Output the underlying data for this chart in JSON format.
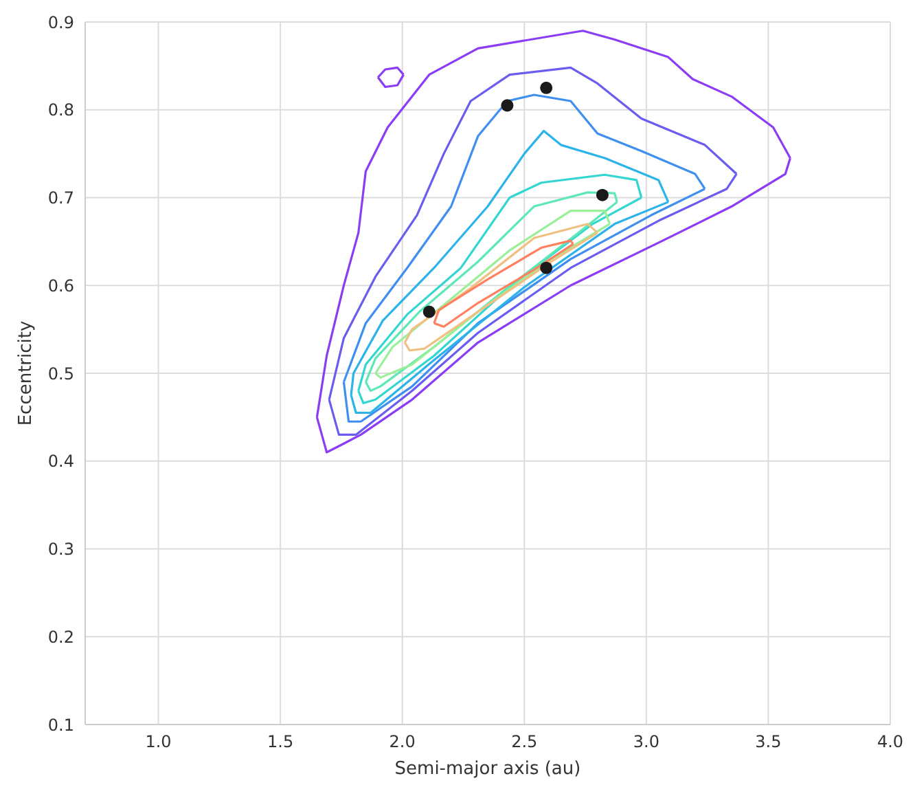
{
  "chart_data": {
    "type": "line",
    "xlabel": "Semi-major axis (au)",
    "ylabel": "Eccentricity",
    "xlim": [
      0.7,
      4.0
    ],
    "ylim": [
      0.1,
      0.9
    ],
    "xticks": [
      {
        "value": 1,
        "label": "1.0"
      },
      1.5,
      {
        "value": 2,
        "label": "2.0"
      },
      2.5,
      {
        "value": 3,
        "label": "3.0"
      },
      3.5,
      {
        "value": 4,
        "label": "4.0"
      }
    ],
    "yticks": [
      0.1,
      0.2,
      0.3,
      0.4,
      0.5,
      0.6,
      0.7,
      0.8,
      0.9
    ],
    "grid": true,
    "line_style": "solid",
    "series": [
      {
        "color": "#8b3cf5",
        "x": [
          1.65,
          1.69,
          1.76,
          1.82,
          1.85,
          1.94,
          2.11,
          2.31,
          2.74,
          2.87,
          3.09,
          3.19,
          3.35,
          3.52,
          3.59,
          null,
          1.65,
          1.69,
          1.74,
          1.83,
          2.04,
          2.31,
          2.69,
          3.06,
          3.35,
          3.57,
          3.59
        ],
        "values": [
          0.45,
          0.52,
          0.6,
          0.66,
          0.73,
          0.78,
          0.84,
          0.87,
          0.89,
          0.88,
          0.86,
          0.835,
          0.815,
          0.78,
          0.745,
          null,
          0.45,
          0.41,
          0.417,
          0.43,
          0.47,
          0.535,
          0.6,
          0.65,
          0.69,
          0.727,
          0.745
        ]
      },
      {
        "color": "#8b3cf5",
        "x": [
          1.9,
          1.93,
          1.98,
          2.005,
          null,
          1.9,
          1.93,
          1.98,
          2.005
        ],
        "values": [
          0.837,
          0.846,
          0.848,
          0.84,
          null,
          0.837,
          0.826,
          0.828,
          0.84
        ]
      },
      {
        "color": "#6b5cf0",
        "x": [
          1.7,
          1.76,
          1.89,
          2.06,
          2.17,
          2.28,
          2.44,
          2.69,
          2.8,
          2.98,
          3.24,
          3.37,
          null,
          1.7,
          1.74,
          1.81,
          2.04,
          2.31,
          2.69,
          3.06,
          3.33,
          3.37
        ],
        "values": [
          0.47,
          0.54,
          0.61,
          0.68,
          0.75,
          0.81,
          0.84,
          0.848,
          0.83,
          0.79,
          0.76,
          0.727,
          null,
          0.47,
          0.43,
          0.43,
          0.48,
          0.546,
          0.62,
          0.675,
          0.71,
          0.727
        ]
      },
      {
        "color": "#3f8ff0",
        "x": [
          1.76,
          1.85,
          2.02,
          2.2,
          2.31,
          2.43,
          2.54,
          2.69,
          2.8,
          2.98,
          3.2,
          3.24,
          null,
          1.76,
          1.78,
          1.83,
          2.04,
          2.31,
          2.69,
          3.02,
          3.24
        ],
        "values": [
          0.49,
          0.557,
          0.62,
          0.69,
          0.77,
          0.81,
          0.817,
          0.81,
          0.773,
          0.753,
          0.727,
          0.71,
          null,
          0.49,
          0.445,
          0.445,
          0.485,
          0.557,
          0.63,
          0.68,
          0.71
        ]
      },
      {
        "color": "#2cb3ea",
        "x": [
          1.79,
          1.8,
          1.92,
          2.13,
          2.35,
          2.5,
          2.58,
          2.65,
          2.83,
          3.05,
          3.09,
          null,
          1.79,
          1.81,
          1.87,
          2.13,
          2.5,
          2.87,
          3.09
        ],
        "values": [
          0.475,
          0.5,
          0.56,
          0.62,
          0.69,
          0.75,
          0.776,
          0.76,
          0.745,
          0.72,
          0.695,
          null,
          0.475,
          0.455,
          0.455,
          0.515,
          0.598,
          0.67,
          0.695
        ]
      },
      {
        "color": "#33d6d0",
        "x": [
          1.82,
          1.85,
          2.02,
          2.24,
          2.44,
          2.57,
          2.83,
          2.96,
          2.98,
          null,
          1.82,
          1.84,
          1.89,
          2.13,
          2.46,
          2.78,
          2.98
        ],
        "values": [
          0.48,
          0.51,
          0.567,
          0.62,
          0.7,
          0.717,
          0.726,
          0.72,
          0.7,
          null,
          0.48,
          0.466,
          0.47,
          0.52,
          0.603,
          0.67,
          0.7
        ]
      },
      {
        "color": "#5de8b5",
        "x": [
          1.85,
          1.89,
          2.07,
          2.31,
          2.54,
          2.76,
          2.87,
          2.88,
          null,
          1.85,
          1.87,
          1.91,
          2.13,
          2.43,
          2.69,
          2.88
        ],
        "values": [
          0.49,
          0.517,
          0.57,
          0.627,
          0.69,
          0.706,
          0.705,
          0.695,
          null,
          0.49,
          0.48,
          0.485,
          0.53,
          0.597,
          0.653,
          0.695
        ]
      },
      {
        "color": "#9af098",
        "x": [
          1.89,
          1.96,
          2.18,
          2.44,
          2.69,
          2.83,
          2.85,
          null,
          1.89,
          1.91,
          2.04,
          2.31,
          2.61,
          2.85
        ],
        "values": [
          0.5,
          0.53,
          0.58,
          0.64,
          0.685,
          0.685,
          0.67,
          null,
          0.5,
          0.495,
          0.51,
          0.57,
          0.63,
          0.67
        ]
      },
      {
        "color": "#f0c080",
        "x": [
          2.01,
          2.04,
          2.28,
          2.54,
          2.76,
          2.8,
          null,
          2.01,
          2.03,
          2.09,
          2.31,
          2.61,
          2.8
        ],
        "values": [
          0.535,
          0.55,
          0.597,
          0.654,
          0.67,
          0.66,
          null,
          0.535,
          0.526,
          0.528,
          0.57,
          0.627,
          0.66
        ]
      },
      {
        "color": "#ff7f5e",
        "x": [
          2.13,
          2.15,
          2.35,
          2.57,
          2.69,
          2.7,
          null,
          2.13,
          2.17,
          2.31,
          2.54,
          2.7
        ],
        "values": [
          0.557,
          0.572,
          0.607,
          0.643,
          0.651,
          0.647,
          null,
          0.557,
          0.553,
          0.58,
          0.618,
          0.647
        ]
      },
      {
        "type": "scatter",
        "color": "#1a1a1a",
        "x": [
          2.43,
          2.59,
          2.82,
          2.59,
          2.11
        ],
        "values": [
          0.805,
          0.825,
          0.703,
          0.62,
          0.57
        ]
      }
    ]
  }
}
